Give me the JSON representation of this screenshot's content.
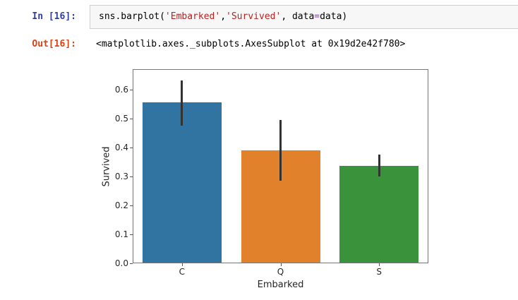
{
  "notebook": {
    "input_prompt": "In [16]:",
    "output_prompt": "Out[16]:",
    "code_tokens": [
      {
        "text": "sns.barplot(",
        "type": "plain"
      },
      {
        "text": "'Embarked'",
        "type": "string"
      },
      {
        "text": ",",
        "type": "plain"
      },
      {
        "text": "'Survived'",
        "type": "string"
      },
      {
        "text": ", data",
        "type": "plain"
      },
      {
        "text": "=",
        "type": "operator"
      },
      {
        "text": "data)",
        "type": "plain"
      }
    ],
    "output_text": "<matplotlib.axes._subplots.AxesSubplot at 0x19d2e42f780>"
  },
  "colors": {
    "input_prompt": "#303F9F",
    "output_prompt": "#D84315",
    "code_plain": "#000000",
    "code_string": "#BA2121",
    "code_operator": "#AA22FF",
    "errorbar": "#333333",
    "axes_spine": "#767676",
    "tick_text": "#262626"
  },
  "chart_data": {
    "type": "bar",
    "title": "",
    "xlabel": "Embarked",
    "ylabel": "Survived",
    "categories": [
      "C",
      "Q",
      "S"
    ],
    "values": [
      0.555,
      0.39,
      0.337
    ],
    "error_low": [
      0.475,
      0.285,
      0.299
    ],
    "error_high": [
      0.632,
      0.495,
      0.376
    ],
    "bar_colors": [
      "#3274a1",
      "#e1812c",
      "#3a923a"
    ],
    "yticks": [
      0.0,
      0.1,
      0.2,
      0.3,
      0.4,
      0.5,
      0.6
    ],
    "ylim": [
      0,
      0.67
    ],
    "grid": false,
    "legend": null
  }
}
